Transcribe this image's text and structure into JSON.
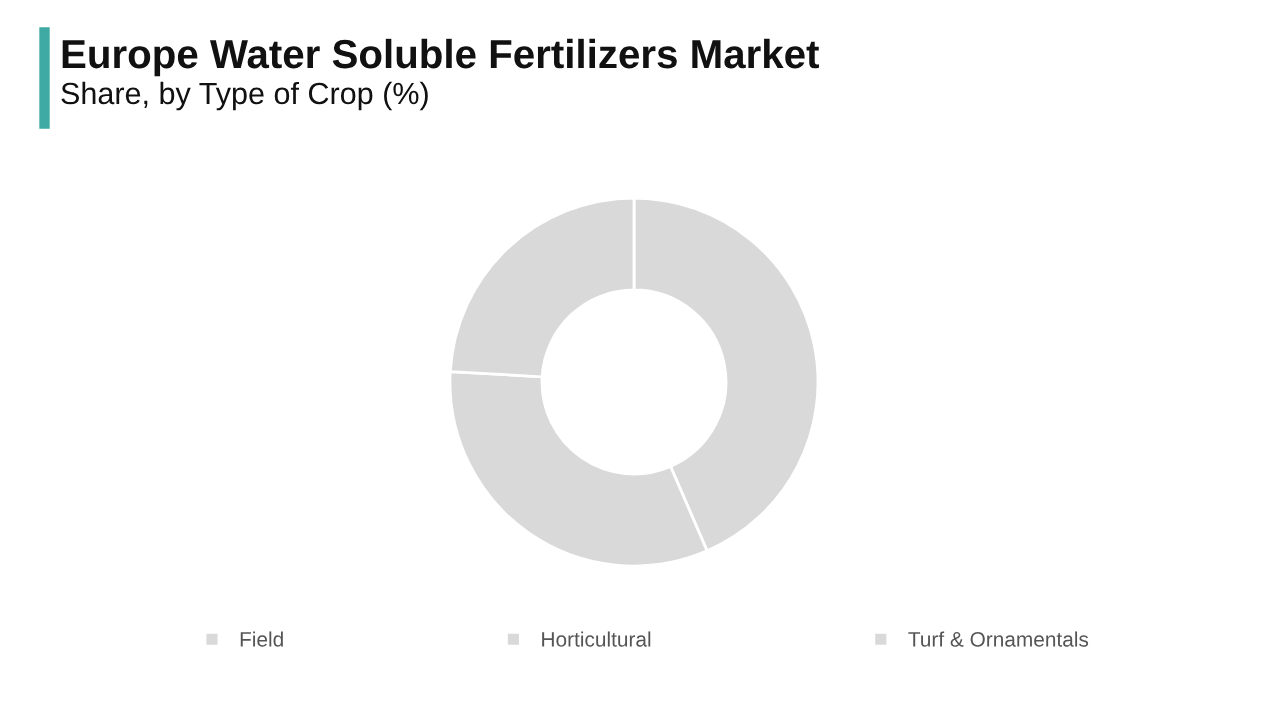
{
  "chart_data": {
    "type": "donut",
    "title": "Europe Water Soluble Fertilizers Market",
    "subtitle": "Share, by Type of Crop (%)",
    "categories": [
      "Field",
      "Horticultural",
      "Turf & Ornamentals"
    ],
    "values": [
      43.5,
      32.4,
      24.1
    ],
    "colors": [
      "#d9d9d9",
      "#d9d9d9",
      "#d9d9d9"
    ],
    "legend": "bottom"
  }
}
